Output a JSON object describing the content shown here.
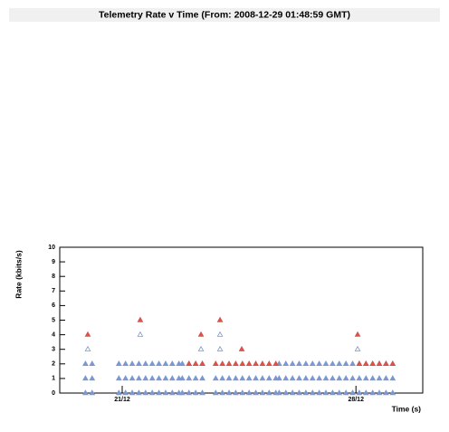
{
  "chart_data": {
    "type": "scatter",
    "title": "Telemetry Rate v Time (From: 2008-12-29 01:48:59 GMT)",
    "x_label": "Time (s)",
    "y_label": "Rate (kbits/s)",
    "xlim": [
      19.13,
      30.0
    ],
    "xticks": [
      {
        "value": 21,
        "label": "21/12"
      },
      {
        "value": 28,
        "label": "28/12"
      }
    ],
    "ylim": [
      0,
      10
    ],
    "yticks": [
      0,
      1,
      2,
      3,
      4,
      5,
      6,
      7,
      8,
      9,
      10
    ],
    "series": [
      {
        "color": "#7b98d3",
        "x": [
          19.9,
          20.1,
          20.9,
          21.1,
          21.3,
          21.5,
          21.7,
          21.9,
          22.1,
          22.3,
          22.5,
          22.7,
          22.8,
          23.0,
          23.2,
          23.4,
          25.7,
          25.9,
          26.1,
          26.3,
          26.5,
          26.7,
          26.9,
          27.1,
          27.3,
          27.5,
          27.7,
          27.9,
          28.1,
          28.3,
          28.5,
          28.7,
          28.9,
          29.1,
          19.9,
          20.1,
          20.9,
          21.1,
          21.3,
          21.5,
          21.7,
          21.9,
          22.1,
          22.3,
          22.5,
          22.7,
          22.8,
          23.0,
          23.2,
          23.4,
          25.7,
          25.9,
          26.1,
          26.3,
          26.5,
          26.7,
          26.9,
          27.1,
          27.3,
          27.5,
          27.7,
          27.9,
          28.1,
          28.3,
          28.5,
          28.7,
          28.9,
          29.1,
          23.8,
          24.0,
          24.2,
          24.4,
          24.6,
          24.8,
          25.0,
          25.2,
          25.4,
          25.6,
          19.9,
          20.1,
          20.9,
          21.1,
          21.3,
          21.5,
          21.7,
          21.9,
          22.1,
          22.3,
          22.5,
          22.7,
          22.8,
          23.0,
          23.2,
          23.4,
          25.7,
          25.9,
          26.1,
          26.3,
          26.5,
          26.7,
          26.9,
          27.1,
          27.3,
          27.5,
          27.7,
          27.9,
          28.1,
          28.3,
          28.5,
          28.7,
          28.9,
          29.1,
          23.8,
          24.0,
          24.2,
          24.4,
          24.6,
          24.8,
          25.0,
          25.2,
          25.4,
          25.6,
          19.97,
          21.54,
          23.36,
          23.93,
          23.93,
          28.05
        ],
        "values": [
          2,
          2,
          2,
          2,
          2,
          2,
          2,
          2,
          2,
          2,
          2,
          2,
          2,
          2,
          2,
          2,
          2,
          2,
          2,
          2,
          2,
          2,
          2,
          2,
          2,
          2,
          2,
          2,
          2,
          2,
          2,
          2,
          2,
          2,
          1,
          1,
          1,
          1,
          1,
          1,
          1,
          1,
          1,
          1,
          1,
          1,
          1,
          1,
          1,
          1,
          1,
          1,
          1,
          1,
          1,
          1,
          1,
          1,
          1,
          1,
          1,
          1,
          1,
          1,
          1,
          1,
          1,
          1,
          1,
          1,
          1,
          1,
          1,
          1,
          1,
          1,
          1,
          1,
          0,
          0,
          0,
          0,
          0,
          0,
          0,
          0,
          0,
          0,
          0,
          0,
          0,
          0,
          0,
          0,
          0,
          0,
          0,
          0,
          0,
          0,
          0,
          0,
          0,
          0,
          0,
          0,
          0,
          0,
          0,
          0,
          0,
          0,
          0,
          0,
          0,
          0,
          0,
          0,
          0,
          0,
          0,
          0,
          3,
          4,
          3,
          4,
          3,
          3
        ]
      },
      {
        "color": "#d9534a",
        "x": [
          23.0,
          23.2,
          23.4,
          23.8,
          24.0,
          24.2,
          24.4,
          24.6,
          24.8,
          25.0,
          25.2,
          25.4,
          25.6,
          28.1,
          28.3,
          28.5,
          28.7,
          28.9,
          29.1,
          19.97,
          21.54,
          23.36,
          23.93,
          24.58,
          28.05
        ],
        "values": [
          2,
          2,
          2,
          2,
          2,
          2,
          2,
          2,
          2,
          2,
          2,
          2,
          2,
          2,
          2,
          2,
          2,
          2,
          2,
          4,
          5,
          4,
          5,
          3,
          4
        ]
      }
    ]
  }
}
